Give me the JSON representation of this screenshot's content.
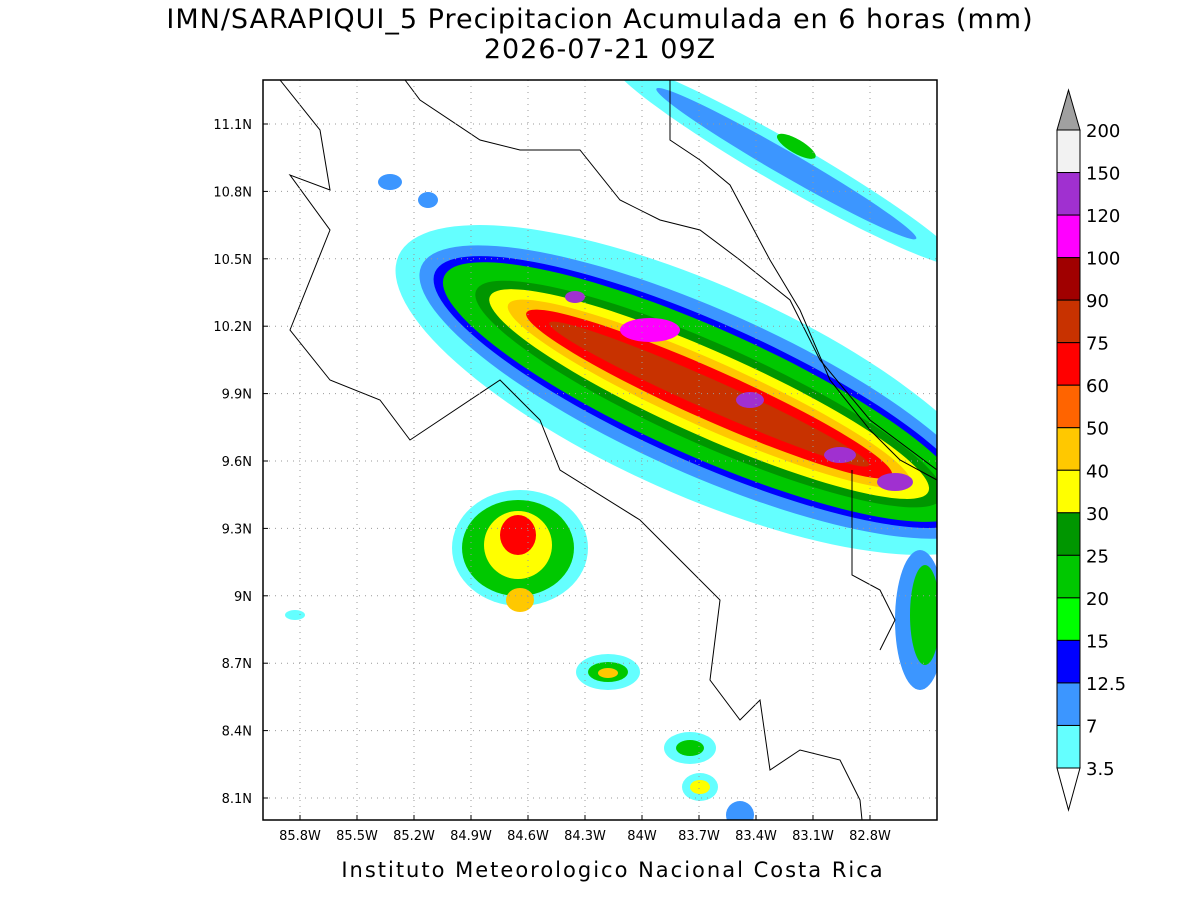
{
  "header": {
    "title": "IMN/SARAPIQUI_5 Precipitacion Acumulada en 6 horas (mm)",
    "subtitle": "2026-07-21 09Z"
  },
  "map": {
    "lon_ticks": [
      "85.8W",
      "85.5W",
      "85.2W",
      "84.9W",
      "84.6W",
      "84.3W",
      "84W",
      "83.7W",
      "83.4W",
      "83.1W",
      "82.8W"
    ],
    "lat_ticks": [
      "11.1N",
      "10.8N",
      "10.5N",
      "10.2N",
      "9.9N",
      "9.6N",
      "9.3N",
      "9N",
      "8.7N",
      "8.4N",
      "8.1N"
    ]
  },
  "colorbar": {
    "labels": [
      "200",
      "150",
      "120",
      "100",
      "90",
      "75",
      "60",
      "50",
      "40",
      "30",
      "25",
      "20",
      "15",
      "12.5",
      "7",
      "3.5"
    ],
    "colors": [
      "#f2f2f2",
      "#a030d0",
      "#ff00ff",
      "#a00000",
      "#c83200",
      "#ff0000",
      "#ff6400",
      "#ffc800",
      "#ffff00",
      "#009600",
      "#00c800",
      "#00ff00",
      "#0000ff",
      "#3c96ff",
      "#64ffff"
    ]
  },
  "footer": "Instituto Meteorologico Nacional Costa Rica"
}
